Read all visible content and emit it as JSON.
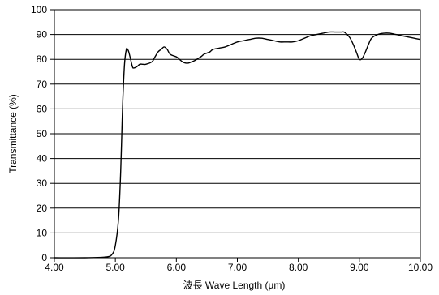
{
  "chart_data": {
    "type": "line",
    "title": "",
    "xlabel": "波長 Wave Length (µm)",
    "ylabel": "Transmittance (%)",
    "xlim": [
      4.0,
      10.0
    ],
    "ylim": [
      0,
      100
    ],
    "grid": "horizontal",
    "x_ticks": [
      "4.00",
      "5.00",
      "6.00",
      "7.00",
      "8.00",
      "9.00",
      "10.00"
    ],
    "y_ticks": [
      "0",
      "10",
      "20",
      "30",
      "40",
      "50",
      "60",
      "70",
      "80",
      "90",
      "100"
    ],
    "series": [
      {
        "x": [
          4.0,
          4.5,
          4.85,
          4.95,
          5.0,
          5.05,
          5.08,
          5.1,
          5.12,
          5.15,
          5.18,
          5.2,
          5.22,
          5.25,
          5.28,
          5.3,
          5.35,
          5.4,
          5.45,
          5.5,
          5.6,
          5.65,
          5.7,
          5.75,
          5.8,
          5.85,
          5.9,
          6.0,
          6.05,
          6.1,
          6.15,
          6.2,
          6.25,
          6.3,
          6.4,
          6.45,
          6.5,
          6.55,
          6.6,
          6.7,
          6.8,
          6.9,
          7.0,
          7.1,
          7.2,
          7.3,
          7.4,
          7.5,
          7.6,
          7.7,
          7.8,
          7.9,
          8.0,
          8.1,
          8.2,
          8.3,
          8.4,
          8.5,
          8.6,
          8.7,
          8.75,
          8.8,
          8.85,
          8.9,
          8.95,
          9.0,
          9.05,
          9.1,
          9.15,
          9.2,
          9.3,
          9.4,
          9.5,
          9.6,
          9.7,
          9.8,
          9.9,
          10.0
        ],
        "y": [
          0,
          0,
          0.3,
          1.5,
          5,
          15,
          30,
          45,
          62,
          78,
          84,
          84,
          83,
          80,
          77,
          76.5,
          77,
          78,
          78,
          78,
          79,
          81,
          83,
          84,
          85,
          84,
          82,
          81,
          80,
          79,
          78.5,
          78.5,
          79,
          79.5,
          81,
          82,
          82.5,
          83,
          84,
          84.5,
          85,
          86,
          87,
          87.5,
          88,
          88.5,
          88.5,
          88,
          87.5,
          87,
          87,
          87,
          87.5,
          88.5,
          89.5,
          90,
          90.5,
          91,
          91,
          91,
          91,
          90,
          88.5,
          86,
          83,
          80,
          80.5,
          83,
          86,
          88.5,
          90,
          90.5,
          90.5,
          90,
          89.5,
          89,
          88.5,
          88
        ]
      }
    ]
  }
}
